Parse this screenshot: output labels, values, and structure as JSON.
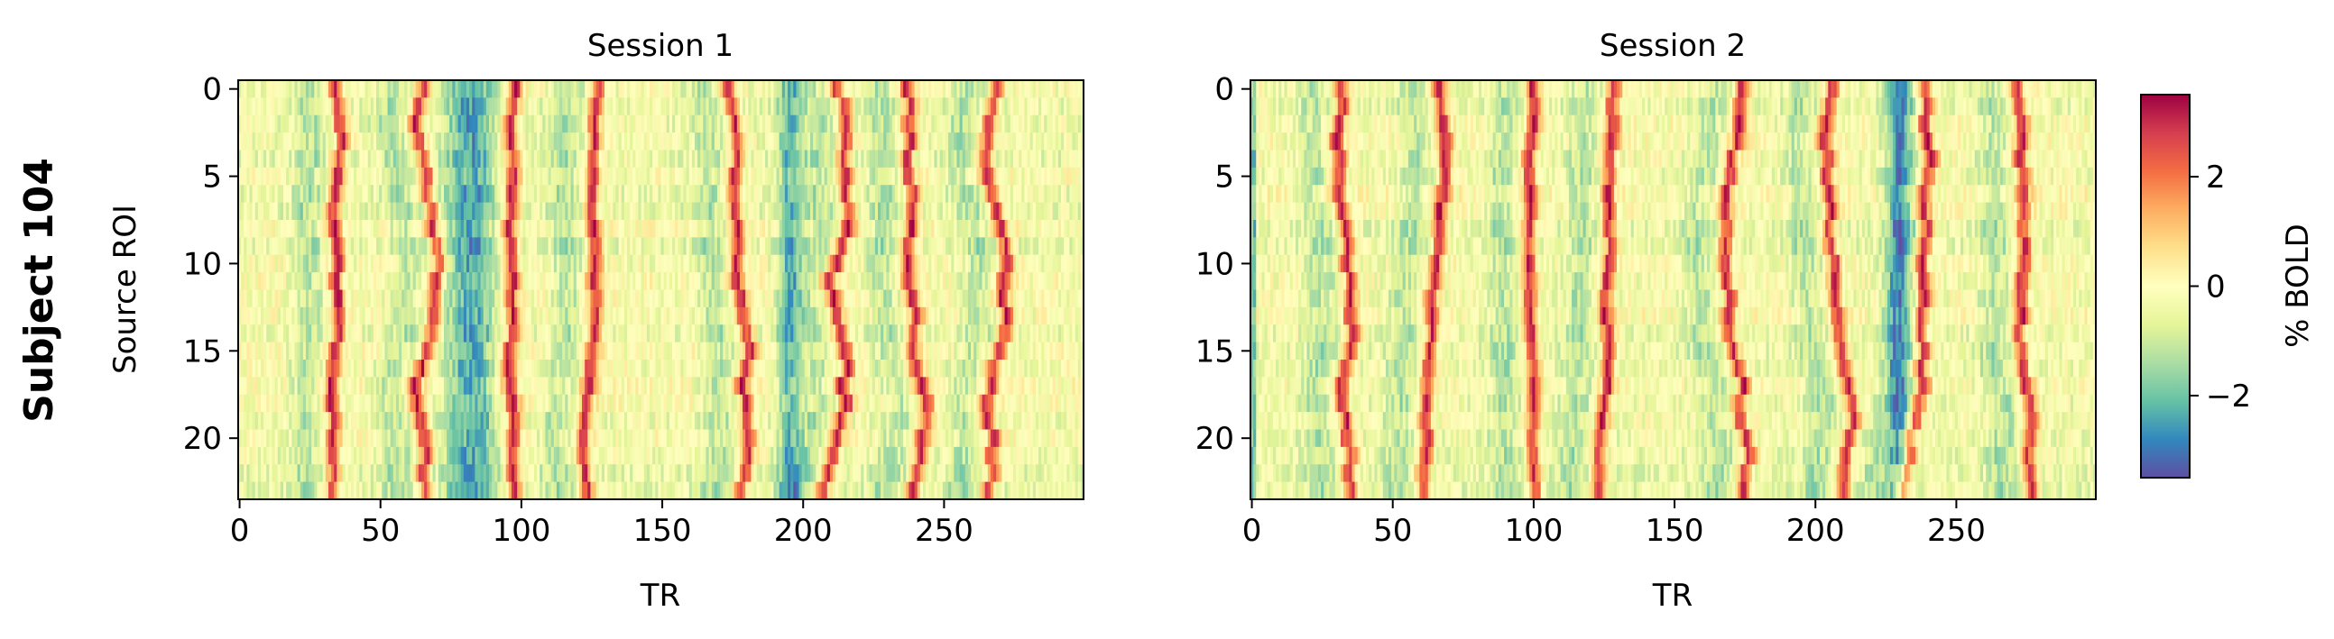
{
  "figure": {
    "row_label": "Subject 104"
  },
  "chart_data": [
    {
      "type": "heatmap",
      "title": "Session 1",
      "xlabel": "TR",
      "ylabel": "Source ROI",
      "rows": 24,
      "columns": 300,
      "xlim": [
        0,
        299
      ],
      "ylim": [
        23,
        0
      ],
      "xticks": [
        0,
        50,
        100,
        150,
        200,
        250
      ],
      "yticks": [
        0,
        5,
        10,
        15,
        20
      ],
      "peak_bands_TR": [
        33,
        67,
        97,
        128,
        175,
        209,
        237,
        270
      ],
      "trough_bands_TR": [
        80,
        195
      ],
      "band_drift_per_row_TR": [
        1.5,
        2.5,
        1.5,
        1,
        2,
        3,
        2,
        2.5
      ]
    },
    {
      "type": "heatmap",
      "title": "Session 2",
      "xlabel": "TR",
      "ylabel": "",
      "rows": 24,
      "columns": 300,
      "xlim": [
        0,
        299
      ],
      "ylim": [
        23,
        0
      ],
      "xticks": [
        0,
        50,
        100,
        150,
        200,
        250
      ],
      "yticks": [
        0,
        5,
        10,
        15,
        20
      ],
      "peak_bands_TR": [
        30,
        67,
        100,
        130,
        175,
        207,
        238,
        270
      ],
      "trough_bands_TR": [
        230
      ],
      "band_drift_per_row_TR": [
        2,
        1.5,
        1,
        1.5,
        2.5,
        2,
        2,
        1.5
      ]
    }
  ],
  "colorbar": {
    "label": "% BOLD",
    "colormap": "Spectral_r",
    "range": [
      -3.5,
      3.5
    ],
    "ticks": [
      2,
      0,
      -2
    ],
    "tick_labels": [
      "2",
      "0",
      "−2"
    ],
    "colors": [
      "#5e4fa2",
      "#3288bd",
      "#66c2a5",
      "#abdda4",
      "#e6f598",
      "#ffffbf",
      "#fee08b",
      "#fdae61",
      "#f46d43",
      "#d53e4f",
      "#9e0142"
    ]
  }
}
